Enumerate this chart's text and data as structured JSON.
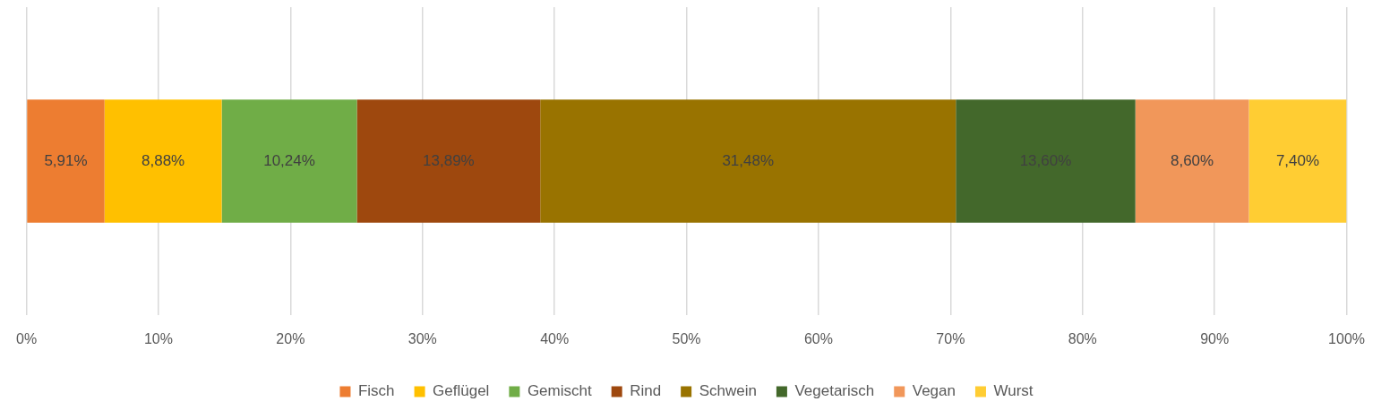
{
  "chart_data": {
    "type": "bar",
    "orientation": "horizontal",
    "stacked": true,
    "categories": [
      null
    ],
    "series": [
      {
        "name": "Fisch",
        "color": "#ed7d31",
        "values": [
          5.91
        ],
        "value_labels": [
          "5,91%"
        ]
      },
      {
        "name": "Geflügel",
        "color": "#ffc000",
        "values": [
          8.88
        ],
        "value_labels": [
          "8,88%"
        ]
      },
      {
        "name": "Gemischt",
        "color": "#70ad47",
        "values": [
          10.24
        ],
        "value_labels": [
          "10,24%"
        ]
      },
      {
        "name": "Rind",
        "color": "#9e480e",
        "values": [
          13.89
        ],
        "value_labels": [
          "13,89%"
        ]
      },
      {
        "name": "Schwein",
        "color": "#997300",
        "values": [
          31.48
        ],
        "value_labels": [
          "31,48%"
        ]
      },
      {
        "name": "Vegetarisch",
        "color": "#43682b",
        "values": [
          13.6
        ],
        "value_labels": [
          "13,60%"
        ]
      },
      {
        "name": "Vegan",
        "color": "#f1975a",
        "values": [
          8.6
        ],
        "value_labels": [
          "8,60%"
        ]
      },
      {
        "name": "Wurst",
        "color": "#ffcd33",
        "values": [
          7.4
        ],
        "value_labels": [
          "7,40%"
        ]
      }
    ],
    "xlim": [
      0,
      100
    ],
    "xticks": [
      {
        "value": 0,
        "label": "0%"
      },
      {
        "value": 10,
        "label": "10%"
      },
      {
        "value": 20,
        "label": "20%"
      },
      {
        "value": 30,
        "label": "30%"
      },
      {
        "value": 40,
        "label": "40%"
      },
      {
        "value": 50,
        "label": "50%"
      },
      {
        "value": 60,
        "label": "60%"
      },
      {
        "value": 70,
        "label": "70%"
      },
      {
        "value": 80,
        "label": "80%"
      },
      {
        "value": 90,
        "label": "90%"
      },
      {
        "value": 100,
        "label": "100%"
      }
    ],
    "grid": "x",
    "legend": "bottom"
  }
}
